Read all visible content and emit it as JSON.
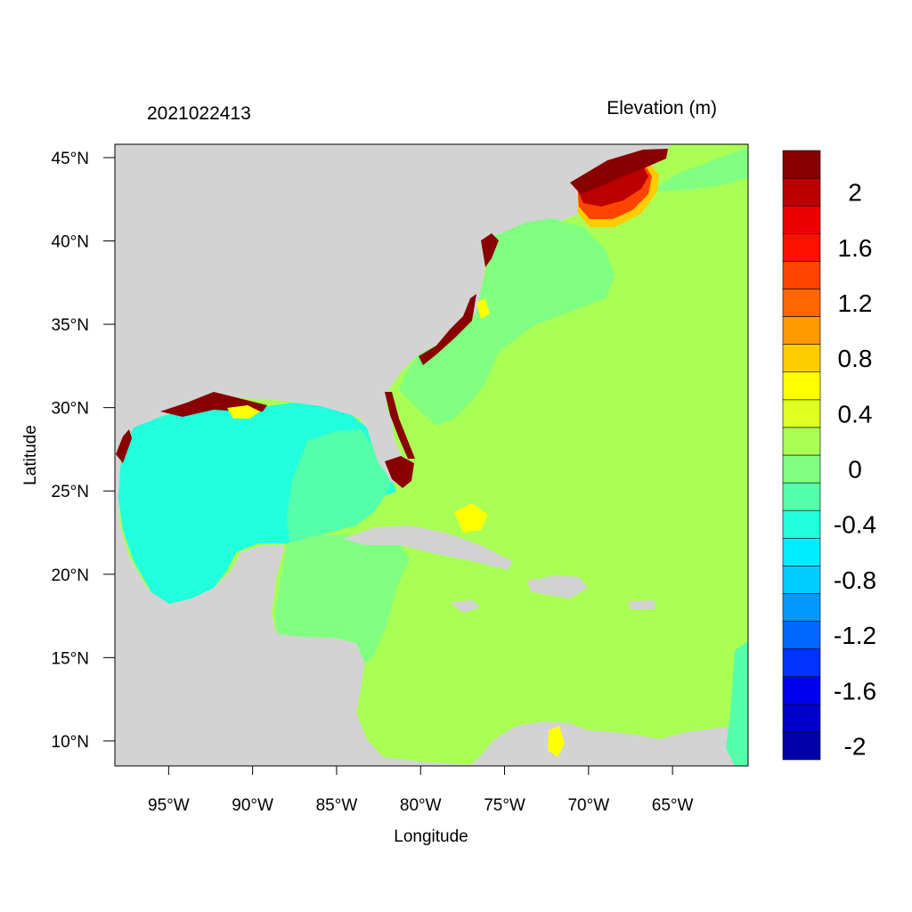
{
  "figure": {
    "timestamp": "2021022413",
    "title": "Elevation (m)",
    "xlabel": "Longitude",
    "ylabel": "Latitude"
  },
  "map": {
    "lon_range": [
      -98.2,
      -60.5
    ],
    "lat_range": [
      8.5,
      45.8
    ],
    "x_ticks": [
      {
        "value": -95,
        "label": "95°W"
      },
      {
        "value": -90,
        "label": "90°W"
      },
      {
        "value": -85,
        "label": "85°W"
      },
      {
        "value": -80,
        "label": "80°W"
      },
      {
        "value": -75,
        "label": "75°W"
      },
      {
        "value": -70,
        "label": "70°W"
      },
      {
        "value": -65,
        "label": "65°W"
      }
    ],
    "y_ticks": [
      {
        "value": 45,
        "label": "45°N"
      },
      {
        "value": 40,
        "label": "40°N"
      },
      {
        "value": 35,
        "label": "35°N"
      },
      {
        "value": 30,
        "label": "30°N"
      },
      {
        "value": 25,
        "label": "25°N"
      },
      {
        "value": 20,
        "label": "20°N"
      },
      {
        "value": 15,
        "label": "15°N"
      },
      {
        "value": 10,
        "label": "10°N"
      }
    ],
    "land_color": "#d3d3d3"
  },
  "colorbar": {
    "colors": [
      "#0000aa",
      "#0000cc",
      "#0000ee",
      "#0033ff",
      "#0066ff",
      "#0099ff",
      "#00ccff",
      "#00eeff",
      "#22ffdd",
      "#55ffaa",
      "#80ff80",
      "#aaff55",
      "#ddff22",
      "#ffff00",
      "#ffcc00",
      "#ff9900",
      "#ff6600",
      "#ff4400",
      "#ff1100",
      "#ee0000",
      "#bb0000",
      "#880000"
    ],
    "labels": [
      {
        "level": 20,
        "text": "2"
      },
      {
        "level": 18,
        "text": "1.6"
      },
      {
        "level": 16,
        "text": "1.2"
      },
      {
        "level": 14,
        "text": "0.8"
      },
      {
        "level": 12,
        "text": "0.4"
      },
      {
        "level": 10,
        "text": "0"
      },
      {
        "level": 8,
        "text": "-0.4"
      },
      {
        "level": 6,
        "text": "-0.8"
      },
      {
        "level": 4,
        "text": "-1.2"
      },
      {
        "level": 2,
        "text": "-1.6"
      },
      {
        "level": 0,
        "text": "-2"
      }
    ]
  }
}
